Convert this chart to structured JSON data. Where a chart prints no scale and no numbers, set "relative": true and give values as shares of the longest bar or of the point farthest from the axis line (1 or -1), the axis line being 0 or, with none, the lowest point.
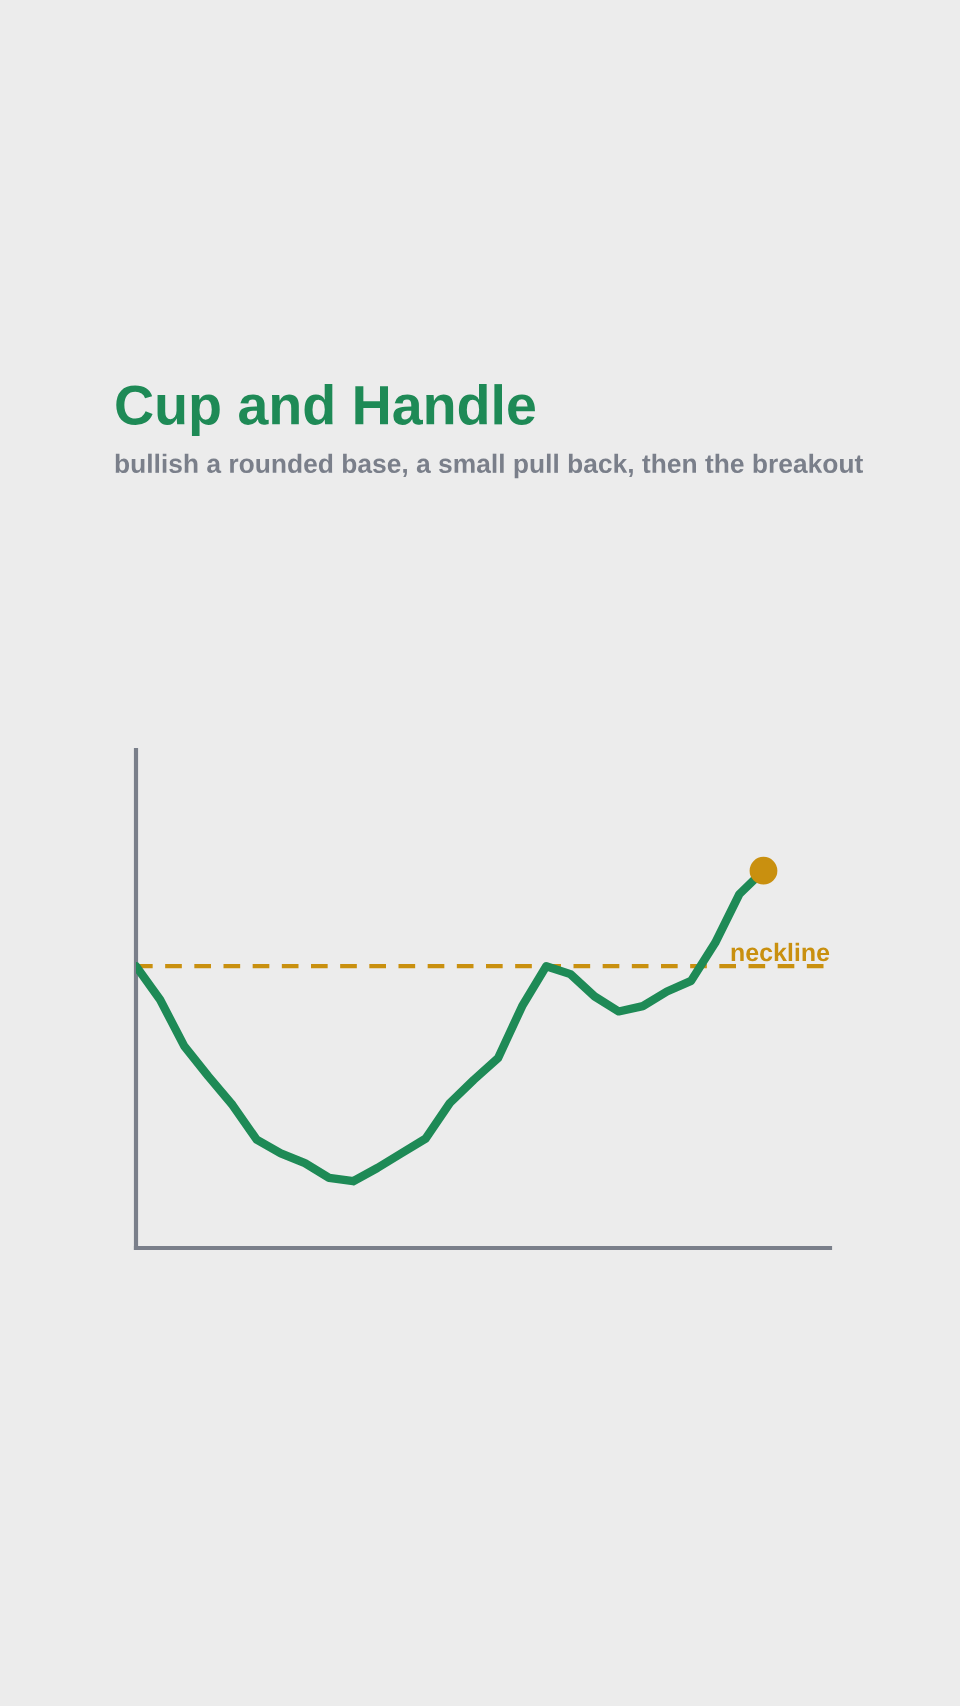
{
  "chart_data": {
    "type": "line",
    "title": "Cup and Handle",
    "subtitle": "bullish a rounded base, a small pull back, then the breakout",
    "relative": true,
    "categories": [
      null,
      null,
      null,
      null,
      null,
      null,
      null,
      null,
      null,
      null,
      null,
      null,
      null,
      null,
      null,
      null,
      null,
      null,
      null,
      null,
      null,
      null,
      null,
      null,
      null,
      null,
      null
    ],
    "series": [
      {
        "color": "#1e8a56",
        "values": [
          0.747,
          0.658,
          0.535,
          0.455,
          0.379,
          0.287,
          0.251,
          0.225,
          0.186,
          0.177,
          0.212,
          0.251,
          0.29,
          0.384,
          0.446,
          0.503,
          0.641,
          0.747,
          0.726,
          0.667,
          0.627,
          0.641,
          0.68,
          0.708,
          0.809,
          0.938,
          1.0
        ]
      }
    ],
    "ref_lines": [
      {
        "axis": "y",
        "value": 0.747,
        "label": "neckline",
        "color": "#c9900f",
        "line_style": "dashed"
      }
    ],
    "legend": false
  }
}
